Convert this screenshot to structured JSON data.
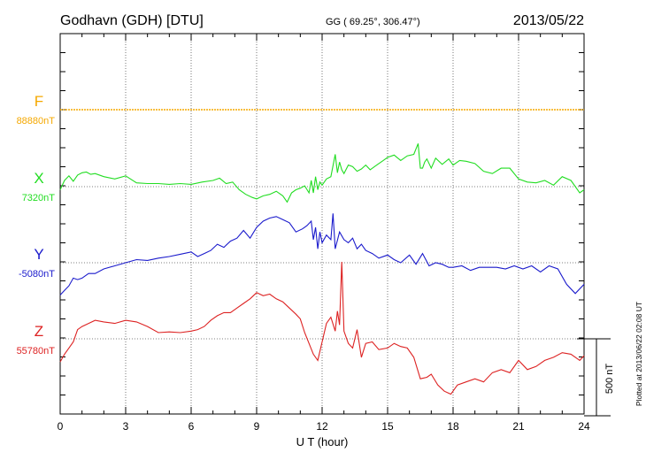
{
  "header": {
    "station": "Godhavn (GDH)  [DTU]",
    "coords": "GG ( 69.25°, 306.47°)",
    "date": "2013/05/22"
  },
  "plotted_note": "Plotted at 2013/06/22 02:08 UT",
  "scale_label": "500 nT",
  "chart_data": {
    "type": "line",
    "title": "",
    "xlabel": "U T (hour)",
    "ylabel": "",
    "xlim": [
      0,
      24
    ],
    "xticks": [
      "0",
      "3",
      "6",
      "9",
      "12",
      "15",
      "18",
      "21",
      "24"
    ],
    "grid": true,
    "scale_bar_nT": 500,
    "series": [
      {
        "name": "F",
        "baseline_label": "88880nT",
        "color": "#f5a800",
        "x": [
          0,
          24
        ],
        "y": [
          0,
          0
        ]
      },
      {
        "name": "X",
        "baseline_label": "7320nT",
        "color": "#22dd22",
        "x": [
          0,
          0.2,
          0.4,
          0.6,
          0.8,
          1,
          1.2,
          1.4,
          1.6,
          2,
          2.5,
          3,
          3.5,
          4,
          4.5,
          5,
          5.5,
          6,
          6.5,
          7,
          7.3,
          7.6,
          7.9,
          8.2,
          8.5,
          8.8,
          9,
          9.3,
          9.6,
          9.9,
          10.2,
          10.4,
          10.6,
          10.8,
          11,
          11.2,
          11.4,
          11.5,
          11.6,
          11.7,
          11.8,
          11.9,
          12,
          12.2,
          12.4,
          12.6,
          12.7,
          12.8,
          12.9,
          13,
          13.2,
          13.4,
          13.6,
          13.8,
          14,
          14.2,
          14.5,
          14.8,
          15,
          15.3,
          15.6,
          15.9,
          16.2,
          16.4,
          16.5,
          16.6,
          16.7,
          16.8,
          17,
          17.2,
          17.5,
          17.8,
          18,
          18.3,
          18.6,
          19,
          19.4,
          19.8,
          20.2,
          20.6,
          21,
          21.4,
          21.8,
          22.2,
          22.6,
          23,
          23.4,
          23.8,
          24
        ],
        "y": [
          -20,
          40,
          70,
          35,
          75,
          90,
          95,
          80,
          85,
          65,
          50,
          70,
          25,
          20,
          20,
          15,
          20,
          15,
          30,
          40,
          55,
          20,
          30,
          -20,
          -50,
          -70,
          -80,
          -60,
          -50,
          -30,
          -60,
          -100,
          -40,
          -20,
          -10,
          5,
          -40,
          40,
          -40,
          65,
          -20,
          30,
          10,
          50,
          65,
          210,
          90,
          160,
          110,
          85,
          140,
          130,
          100,
          115,
          140,
          110,
          140,
          170,
          190,
          205,
          170,
          200,
          210,
          280,
          120,
          120,
          160,
          180,
          120,
          185,
          145,
          180,
          140,
          170,
          165,
          150,
          100,
          85,
          120,
          120,
          50,
          30,
          25,
          40,
          10,
          65,
          40,
          -40,
          -20
        ]
      },
      {
        "name": "Y",
        "baseline_label": "-5080nT",
        "color": "#1a1acc",
        "x": [
          0,
          0.2,
          0.4,
          0.6,
          0.8,
          1,
          1.3,
          1.6,
          2,
          2.5,
          3,
          3.5,
          4,
          4.5,
          5,
          5.5,
          6,
          6.3,
          6.6,
          6.9,
          7.2,
          7.5,
          7.8,
          8.1,
          8.4,
          8.7,
          9,
          9.3,
          9.6,
          9.9,
          10.2,
          10.5,
          10.8,
          11.1,
          11.3,
          11.5,
          11.6,
          11.7,
          11.8,
          11.9,
          12,
          12.2,
          12.4,
          12.5,
          12.6,
          12.8,
          13,
          13.2,
          13.4,
          13.6,
          13.8,
          14,
          14.3,
          14.6,
          15,
          15.3,
          15.6,
          16,
          16.3,
          16.6,
          16.9,
          17.2,
          17.5,
          17.8,
          18,
          18.4,
          18.8,
          19.2,
          19.6,
          20,
          20.4,
          20.8,
          21.2,
          21.6,
          22,
          22.4,
          22.8,
          23.2,
          23.6,
          24
        ],
        "y": [
          -210,
          -180,
          -150,
          -100,
          -110,
          -100,
          -70,
          -70,
          -40,
          -20,
          0,
          20,
          15,
          30,
          40,
          55,
          70,
          40,
          60,
          80,
          120,
          100,
          140,
          160,
          210,
          160,
          230,
          270,
          290,
          300,
          280,
          260,
          200,
          220,
          240,
          270,
          150,
          230,
          90,
          200,
          130,
          180,
          150,
          320,
          90,
          200,
          150,
          130,
          160,
          90,
          120,
          80,
          60,
          30,
          50,
          20,
          0,
          50,
          -10,
          60,
          -20,
          0,
          -10,
          -30,
          -30,
          -20,
          -50,
          -30,
          -30,
          -30,
          -40,
          -20,
          -40,
          -20,
          -60,
          -20,
          -40,
          -140,
          -200,
          -140
        ]
      },
      {
        "name": "Z",
        "baseline_label": "55780nT",
        "color": "#dd2222",
        "x": [
          0,
          0.2,
          0.4,
          0.6,
          0.8,
          1,
          1.3,
          1.6,
          2,
          2.5,
          3,
          3.5,
          4,
          4.5,
          5,
          5.5,
          6,
          6.3,
          6.6,
          6.9,
          7.2,
          7.5,
          7.8,
          8.1,
          8.4,
          8.7,
          9,
          9.3,
          9.6,
          9.9,
          10.2,
          10.5,
          10.8,
          11,
          11.2,
          11.4,
          11.6,
          11.8,
          12,
          12.2,
          12.4,
          12.6,
          12.7,
          12.8,
          12.9,
          13,
          13.2,
          13.4,
          13.6,
          13.8,
          14,
          14.3,
          14.6,
          15,
          15.3,
          15.6,
          15.9,
          16.2,
          16.5,
          16.8,
          17,
          17.3,
          17.6,
          17.9,
          18.2,
          18.6,
          19,
          19.4,
          19.8,
          20.2,
          20.6,
          21,
          21.4,
          21.8,
          22.2,
          22.6,
          23,
          23.4,
          23.8,
          24
        ],
        "y": [
          -150,
          -100,
          -60,
          -20,
          60,
          80,
          100,
          120,
          110,
          100,
          120,
          110,
          80,
          40,
          45,
          40,
          50,
          60,
          80,
          120,
          150,
          170,
          170,
          200,
          230,
          260,
          300,
          280,
          290,
          260,
          240,
          200,
          160,
          130,
          40,
          -30,
          -100,
          -140,
          -20,
          100,
          140,
          50,
          180,
          90,
          500,
          50,
          -30,
          -60,
          60,
          -120,
          -30,
          -20,
          -70,
          -60,
          -30,
          -50,
          -60,
          -120,
          -260,
          -250,
          -230,
          -300,
          -340,
          -360,
          -300,
          -280,
          -260,
          -280,
          -220,
          -200,
          -220,
          -140,
          -200,
          -180,
          -140,
          -120,
          -90,
          -100,
          -140,
          -110
        ]
      }
    ]
  }
}
